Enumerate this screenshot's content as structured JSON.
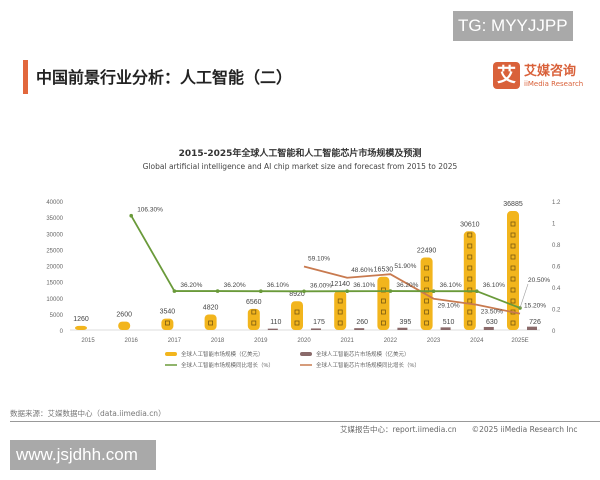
{
  "watermark_top": "TG: MYYJJPP",
  "page_title": "中国前景行业分析：人工智能（二）",
  "logo": {
    "mark": "艾",
    "cn": "艾媒咨询",
    "en": "iiMedia Research"
  },
  "source": "数据来源：艾媒数据中心（data.iimedia.cn）",
  "footer": "艾媒报告中心：report.iimedia.cn　　©2025  iiMedia Research  Inc",
  "watermark_bottom": "www.jsjdhh.com",
  "colors": {
    "accent": "#e2673c",
    "ai_bar": "#f2b51d",
    "chip_bar": "#8a6a6a",
    "ai_growth": "#6a9a3a",
    "chip_growth": "#c87a4f"
  },
  "chart_data": {
    "type": "bar",
    "title": "2015-2025年全球人工智能和人工智能芯片市场规模及预测",
    "subtitle": "Global artificial intelligence and AI chip market size and forecast from 2015 to 2025",
    "categories": [
      "2015",
      "2016",
      "2017",
      "2018",
      "2019",
      "2020",
      "2021",
      "2022",
      "2023",
      "2024",
      "2025E"
    ],
    "ylim": [
      0,
      40000
    ],
    "yticks": [
      "0",
      "5000",
      "10000",
      "15000",
      "20000",
      "25000",
      "30000",
      "35000",
      "40000"
    ],
    "y2lim": [
      0,
      1.2
    ],
    "y2ticks": [
      "0",
      "0.2",
      "0.4",
      "0.6",
      "0.8",
      "1",
      "1.2"
    ],
    "legend_position": "bottom",
    "series": [
      {
        "name": "全球人工智能市场规模（亿美元）",
        "kind": "bar",
        "values": [
          1260,
          2600,
          3540,
          4820,
          6560,
          8920,
          12140,
          16530,
          22490,
          30610,
          36885
        ]
      },
      {
        "name": "全球人工智能芯片市场规模（亿美元）",
        "kind": "bar",
        "values": [
          null,
          null,
          null,
          null,
          110,
          175,
          260,
          395,
          510,
          630,
          726
        ]
      },
      {
        "name": "全球人工智能市场规模同比增长（%）",
        "kind": "line",
        "axis": "right",
        "values": [
          null,
          1.063,
          0.362,
          0.362,
          0.361,
          0.36,
          0.361,
          0.362,
          0.361,
          0.361,
          0.205
        ],
        "labels": [
          null,
          "106.30%",
          "36.20%",
          "36.20%",
          "36.10%",
          "36.00%",
          "36.10%",
          "36.20%",
          "36.10%",
          "36.10%",
          "20.50%"
        ]
      },
      {
        "name": "全球人工智能芯片市场规模同比增长（%）",
        "kind": "line",
        "axis": "right",
        "values": [
          null,
          null,
          null,
          null,
          null,
          0.591,
          0.486,
          0.519,
          0.291,
          0.235,
          0.152
        ],
        "labels": [
          null,
          null,
          null,
          null,
          null,
          "59.10%",
          "48.60%",
          "51.90%",
          "29.10%",
          "23.50%",
          "15.20%"
        ]
      }
    ]
  }
}
